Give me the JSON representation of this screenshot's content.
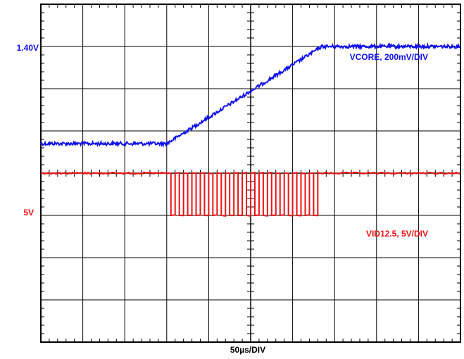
{
  "chart_data": {
    "type": "line",
    "title": "",
    "xlabel": "50µs/DIV",
    "ylabel": "",
    "grid": true,
    "x_divisions": 10,
    "y_divisions": 8,
    "time_per_div_us": 50,
    "colors": {
      "blue": "#1010ee",
      "red": "#ee1111",
      "grid": "#000000"
    },
    "series": [
      {
        "name": "VCORE, 200mV/DIV",
        "level_label": "1.40V",
        "level_label_color": "#1010ee",
        "volts_per_div": 0.2,
        "points_div": [
          [
            0,
            2.3
          ],
          [
            3.0,
            2.3
          ],
          [
            6.7,
            0.0
          ],
          [
            10.0,
            0.0
          ]
        ],
        "noise_div": 0.04
      },
      {
        "name": "VID12.5, 5V/DIV",
        "level_label": "5V",
        "level_label_color": "#ee1111",
        "volts_per_div": 5,
        "high_div": 4.0,
        "low_div": 5.0,
        "switching_start_div": 3.0,
        "switching_end_div": 6.6,
        "noise_div": 0.02
      }
    ]
  }
}
